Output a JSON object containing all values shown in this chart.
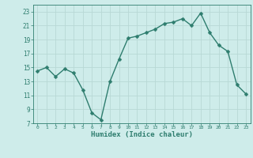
{
  "x": [
    0,
    1,
    2,
    3,
    4,
    5,
    6,
    7,
    8,
    9,
    10,
    11,
    12,
    13,
    14,
    15,
    16,
    17,
    18,
    19,
    20,
    21,
    22,
    23
  ],
  "y": [
    14.5,
    15.0,
    13.7,
    14.8,
    14.2,
    11.8,
    8.5,
    7.5,
    13.0,
    16.2,
    19.2,
    19.5,
    20.0,
    20.5,
    21.3,
    21.5,
    22.0,
    21.0,
    22.8,
    20.0,
    18.2,
    17.3,
    12.5,
    11.2
  ],
  "line_color": "#2e7d6e",
  "marker": "D",
  "marker_size": 2.5,
  "bg_color": "#ceecea",
  "grid_color": "#b8d8d5",
  "xlabel": "Humidex (Indice chaleur)",
  "yticks": [
    7,
    9,
    11,
    13,
    15,
    17,
    19,
    21,
    23
  ],
  "xlim": [
    -0.5,
    23.5
  ],
  "ylim": [
    7,
    24
  ]
}
